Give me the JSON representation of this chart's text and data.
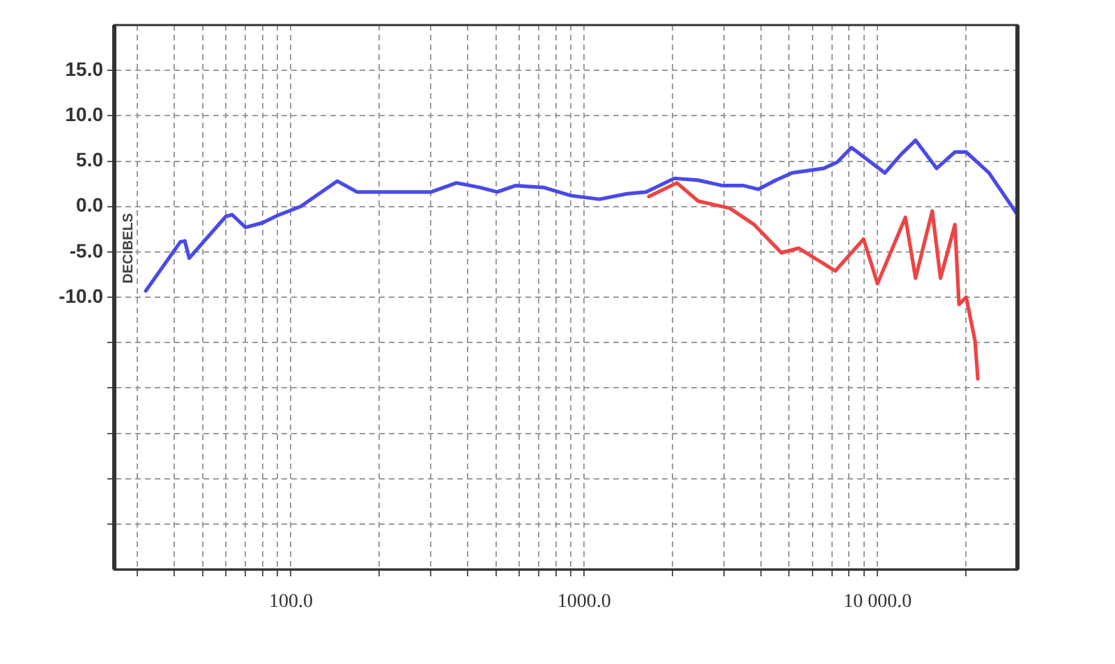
{
  "chart_data": {
    "type": "line",
    "ylabel": "DECIBELS",
    "log": "x",
    "grid": true,
    "xlim": [
      25,
      30000
    ],
    "ylim": [
      -40,
      20
    ],
    "xticks": [
      {
        "value": 30,
        "label": null
      },
      {
        "value": 40,
        "label": null
      },
      {
        "value": 50,
        "label": null
      },
      {
        "value": 60,
        "label": null
      },
      {
        "value": 70,
        "label": null
      },
      {
        "value": 80,
        "label": null
      },
      {
        "value": 90,
        "label": null
      },
      {
        "value": 100,
        "label": "100.0"
      },
      {
        "value": 200,
        "label": null
      },
      {
        "value": 300,
        "label": null
      },
      {
        "value": 400,
        "label": null
      },
      {
        "value": 500,
        "label": null
      },
      {
        "value": 600,
        "label": null
      },
      {
        "value": 700,
        "label": null
      },
      {
        "value": 800,
        "label": null
      },
      {
        "value": 900,
        "label": null
      },
      {
        "value": 1000,
        "label": "1000.0"
      },
      {
        "value": 2000,
        "label": null
      },
      {
        "value": 3000,
        "label": null
      },
      {
        "value": 4000,
        "label": null
      },
      {
        "value": 5000,
        "label": null
      },
      {
        "value": 6000,
        "label": null
      },
      {
        "value": 7000,
        "label": null
      },
      {
        "value": 8000,
        "label": null
      },
      {
        "value": 9000,
        "label": null
      },
      {
        "value": 10000,
        "label": "10 000.0"
      },
      {
        "value": 20000,
        "label": null
      }
    ],
    "yticks": [
      {
        "value": -35,
        "label": null
      },
      {
        "value": -30,
        "label": null
      },
      {
        "value": -25,
        "label": null
      },
      {
        "value": -20,
        "label": null
      },
      {
        "value": -15,
        "label": null
      },
      {
        "value": -10,
        "label": "-10.0"
      },
      {
        "value": -5,
        "label": "-5.0"
      },
      {
        "value": 0,
        "label": "0.0"
      },
      {
        "value": 5,
        "label": "5.0"
      },
      {
        "value": 10,
        "label": "10.0"
      },
      {
        "value": 15,
        "label": "15.0"
      }
    ],
    "series": [
      {
        "color": "#4a4ae6",
        "x": [
          32,
          42,
          43.5,
          45,
          60,
          63,
          70,
          80,
          90,
          108,
          144,
          168,
          223,
          301,
          367,
          440,
          505,
          583,
          726,
          900,
          1127,
          1400,
          1626,
          2031,
          2444,
          2966,
          3500,
          3928,
          4500,
          5122,
          6558,
          7300,
          8152,
          9200,
          10600,
          12000,
          13480,
          15910,
          18360,
          20060,
          24000,
          29850
        ],
        "values": [
          -9.3,
          -3.9,
          -3.8,
          -5.7,
          -1.1,
          -0.9,
          -2.3,
          -1.8,
          -1.0,
          0,
          2.8,
          1.6,
          1.6,
          1.6,
          2.6,
          2.1,
          1.6,
          2.3,
          2.1,
          1.2,
          0.8,
          1.4,
          1.6,
          3.1,
          2.9,
          2.3,
          2.3,
          1.9,
          2.9,
          3.7,
          4.2,
          4.9,
          6.5,
          5.2,
          3.7,
          5.7,
          7.3,
          4.2,
          6.0,
          6.0,
          3.7,
          -0.8
        ]
      },
      {
        "color": "#ee4444",
        "x": [
          1662,
          2070,
          2444,
          3140,
          3798,
          4700,
          5390,
          7180,
          8965,
          10000,
          12450,
          13480,
          15370,
          16400,
          18360,
          18960,
          20060,
          21500,
          21990
        ],
        "values": [
          1.1,
          2.6,
          0.6,
          -0.2,
          -2.0,
          -5.1,
          -4.6,
          -7.1,
          -3.6,
          -8.5,
          -1.2,
          -7.9,
          -0.5,
          -7.9,
          -2.0,
          -10.8,
          -10.0,
          -14.8,
          -19.0
        ]
      }
    ]
  }
}
